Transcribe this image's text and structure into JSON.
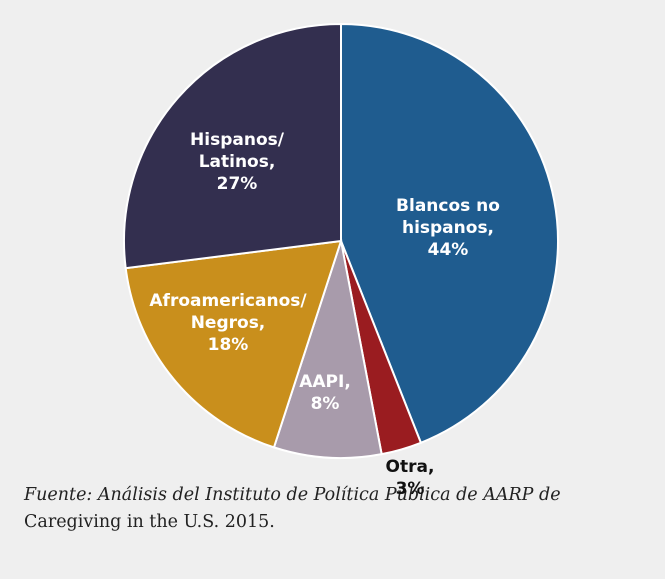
{
  "chart_data": {
    "type": "pie",
    "categories": [
      "Blancos no hispanos,",
      "Otra,",
      "AAPI,",
      "Afroamericanos/ Negros,",
      "Hispanos/ Latinos,"
    ],
    "values": [
      44,
      3,
      8,
      18,
      27
    ],
    "value_labels": [
      "44%",
      "3%",
      "8%",
      "18%",
      "27%"
    ],
    "colors": [
      "#1f5c8f",
      "#9a1c20",
      "#a89bab",
      "#c98f1c",
      "#332f4f"
    ],
    "source": {
      "italic": "Fuente: Análisis del Instituto de Política Pública de AARP de",
      "plain": "Caregiving in the U.S. 2015."
    }
  }
}
